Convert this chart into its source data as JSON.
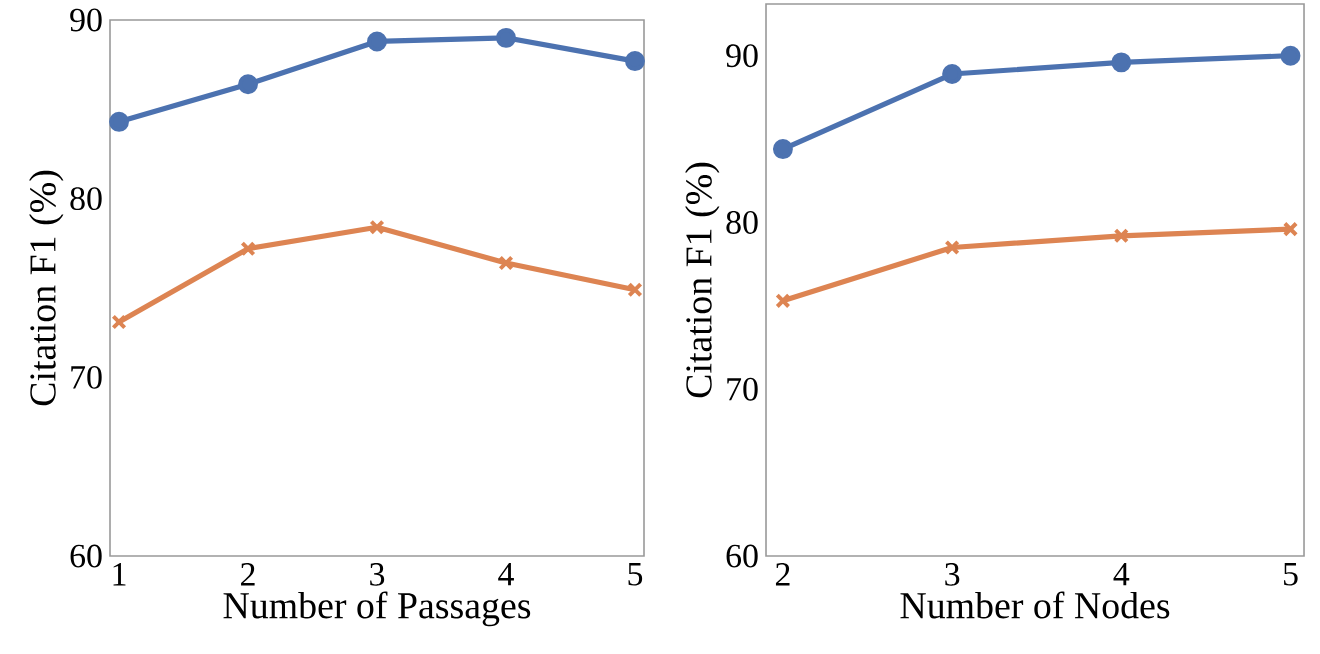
{
  "chart_data": [
    {
      "type": "line",
      "xlabel": "Number of Passages",
      "ylabel": "Citation F1 (%)",
      "x": [
        1,
        2,
        3,
        4,
        5
      ],
      "xlim": [
        0.93,
        5.07
      ],
      "ylim": [
        60,
        90
      ],
      "xticks": [
        1,
        2,
        3,
        4,
        5
      ],
      "yticks": [
        60,
        70,
        80,
        90
      ],
      "series": [
        {
          "color": "#4c72b0",
          "marker": "circle",
          "values": [
            84.3,
            86.4,
            88.8,
            89.0,
            87.7
          ]
        },
        {
          "color": "#dd8452",
          "marker": "cross",
          "values": [
            73.1,
            77.2,
            78.4,
            76.4,
            74.9
          ]
        }
      ]
    },
    {
      "type": "line",
      "xlabel": "Number of Nodes",
      "ylabel": "Citation F1 (%)",
      "x": [
        2,
        3,
        4,
        5
      ],
      "xlim": [
        1.9,
        5.08
      ],
      "ylim": [
        60,
        93.1
      ],
      "xticks": [
        2,
        3,
        4,
        5
      ],
      "yticks": [
        60,
        70,
        80,
        90
      ],
      "series": [
        {
          "color": "#4c72b0",
          "marker": "circle",
          "values": [
            84.4,
            88.9,
            89.6,
            90.0
          ]
        },
        {
          "color": "#dd8452",
          "marker": "cross",
          "values": [
            75.3,
            78.5,
            79.2,
            79.6
          ]
        }
      ]
    }
  ]
}
